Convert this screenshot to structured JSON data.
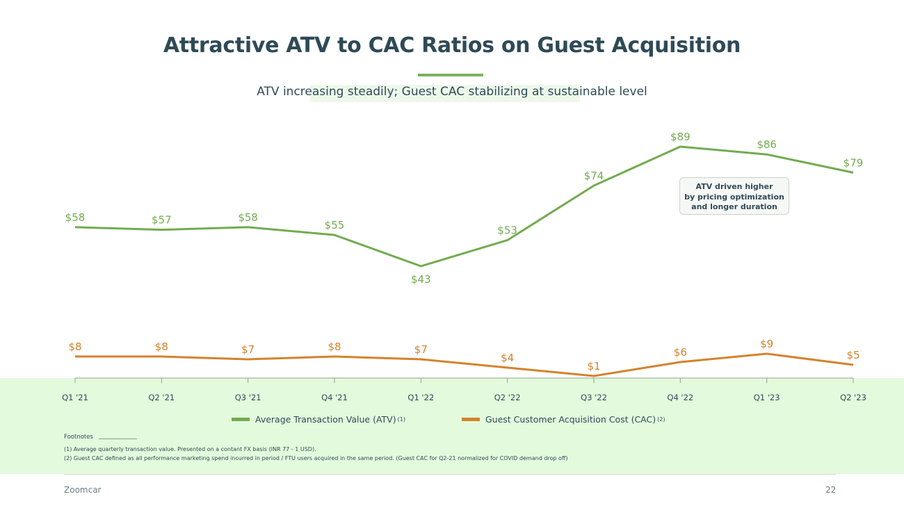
{
  "title": "Attractive ATV to CAC Ratios on Guest Acquisition",
  "subtitle": "ATV increasing steadily; Guest CAC stabilizing at sustainable level",
  "annotation": {
    "line1": "ATV driven higher",
    "line2": "by pricing optimization",
    "line3": "and longer duration"
  },
  "legend": {
    "atv_label": "Average Transaction Value (ATV)",
    "atv_sup": "(1)",
    "cac_label": "Guest Customer Acquisition Cost (CAC)",
    "cac_sup": "(2)"
  },
  "footnotes": {
    "title": "Footnotes",
    "note1": "(1)  Average quarterly transaction value. Presented on a contant FX basis (INR 77 - 1 USD).",
    "note2": "(2) Guest CAC defined as all performance marketing spend incurred in period / FTU users acquired in the same period. (Guest CAC for Q2-21 normalized for COVID demand drop off)"
  },
  "footer": {
    "company": "Zoomcar",
    "page": "22"
  },
  "colors": {
    "atv": "#72ab50",
    "cac": "#d4822c"
  },
  "chart_data": {
    "type": "line",
    "categories": [
      "Q1 '21",
      "Q2 '21",
      "Q3 '21",
      "Q4 '21",
      "Q1 '22",
      "Q2 '22",
      "Q3 '22",
      "Q4 '22",
      "Q1 '23",
      "Q2 '23"
    ],
    "series": [
      {
        "name": "Average Transaction Value (ATV)",
        "values": [
          58,
          57,
          58,
          55,
          43,
          53,
          74,
          89,
          86,
          79
        ],
        "labels": [
          "$58",
          "$57",
          "$58",
          "$55",
          "$43",
          "$53",
          "$74",
          "$89",
          "$86",
          "$79"
        ]
      },
      {
        "name": "Guest Customer Acquisition Cost (CAC)",
        "values": [
          8,
          8,
          7,
          8,
          7,
          4,
          1,
          6,
          9,
          5
        ],
        "labels": [
          "$8",
          "$8",
          "$7",
          "$8",
          "$7",
          "$4",
          "$1",
          "$6",
          "$9",
          "$5"
        ]
      }
    ],
    "title": "ATV increasing steadily; Guest CAC stabilizing at sustainable level",
    "xlabel": "",
    "ylabel": "",
    "ylim": [
      0,
      95
    ],
    "legend_position": "bottom"
  }
}
